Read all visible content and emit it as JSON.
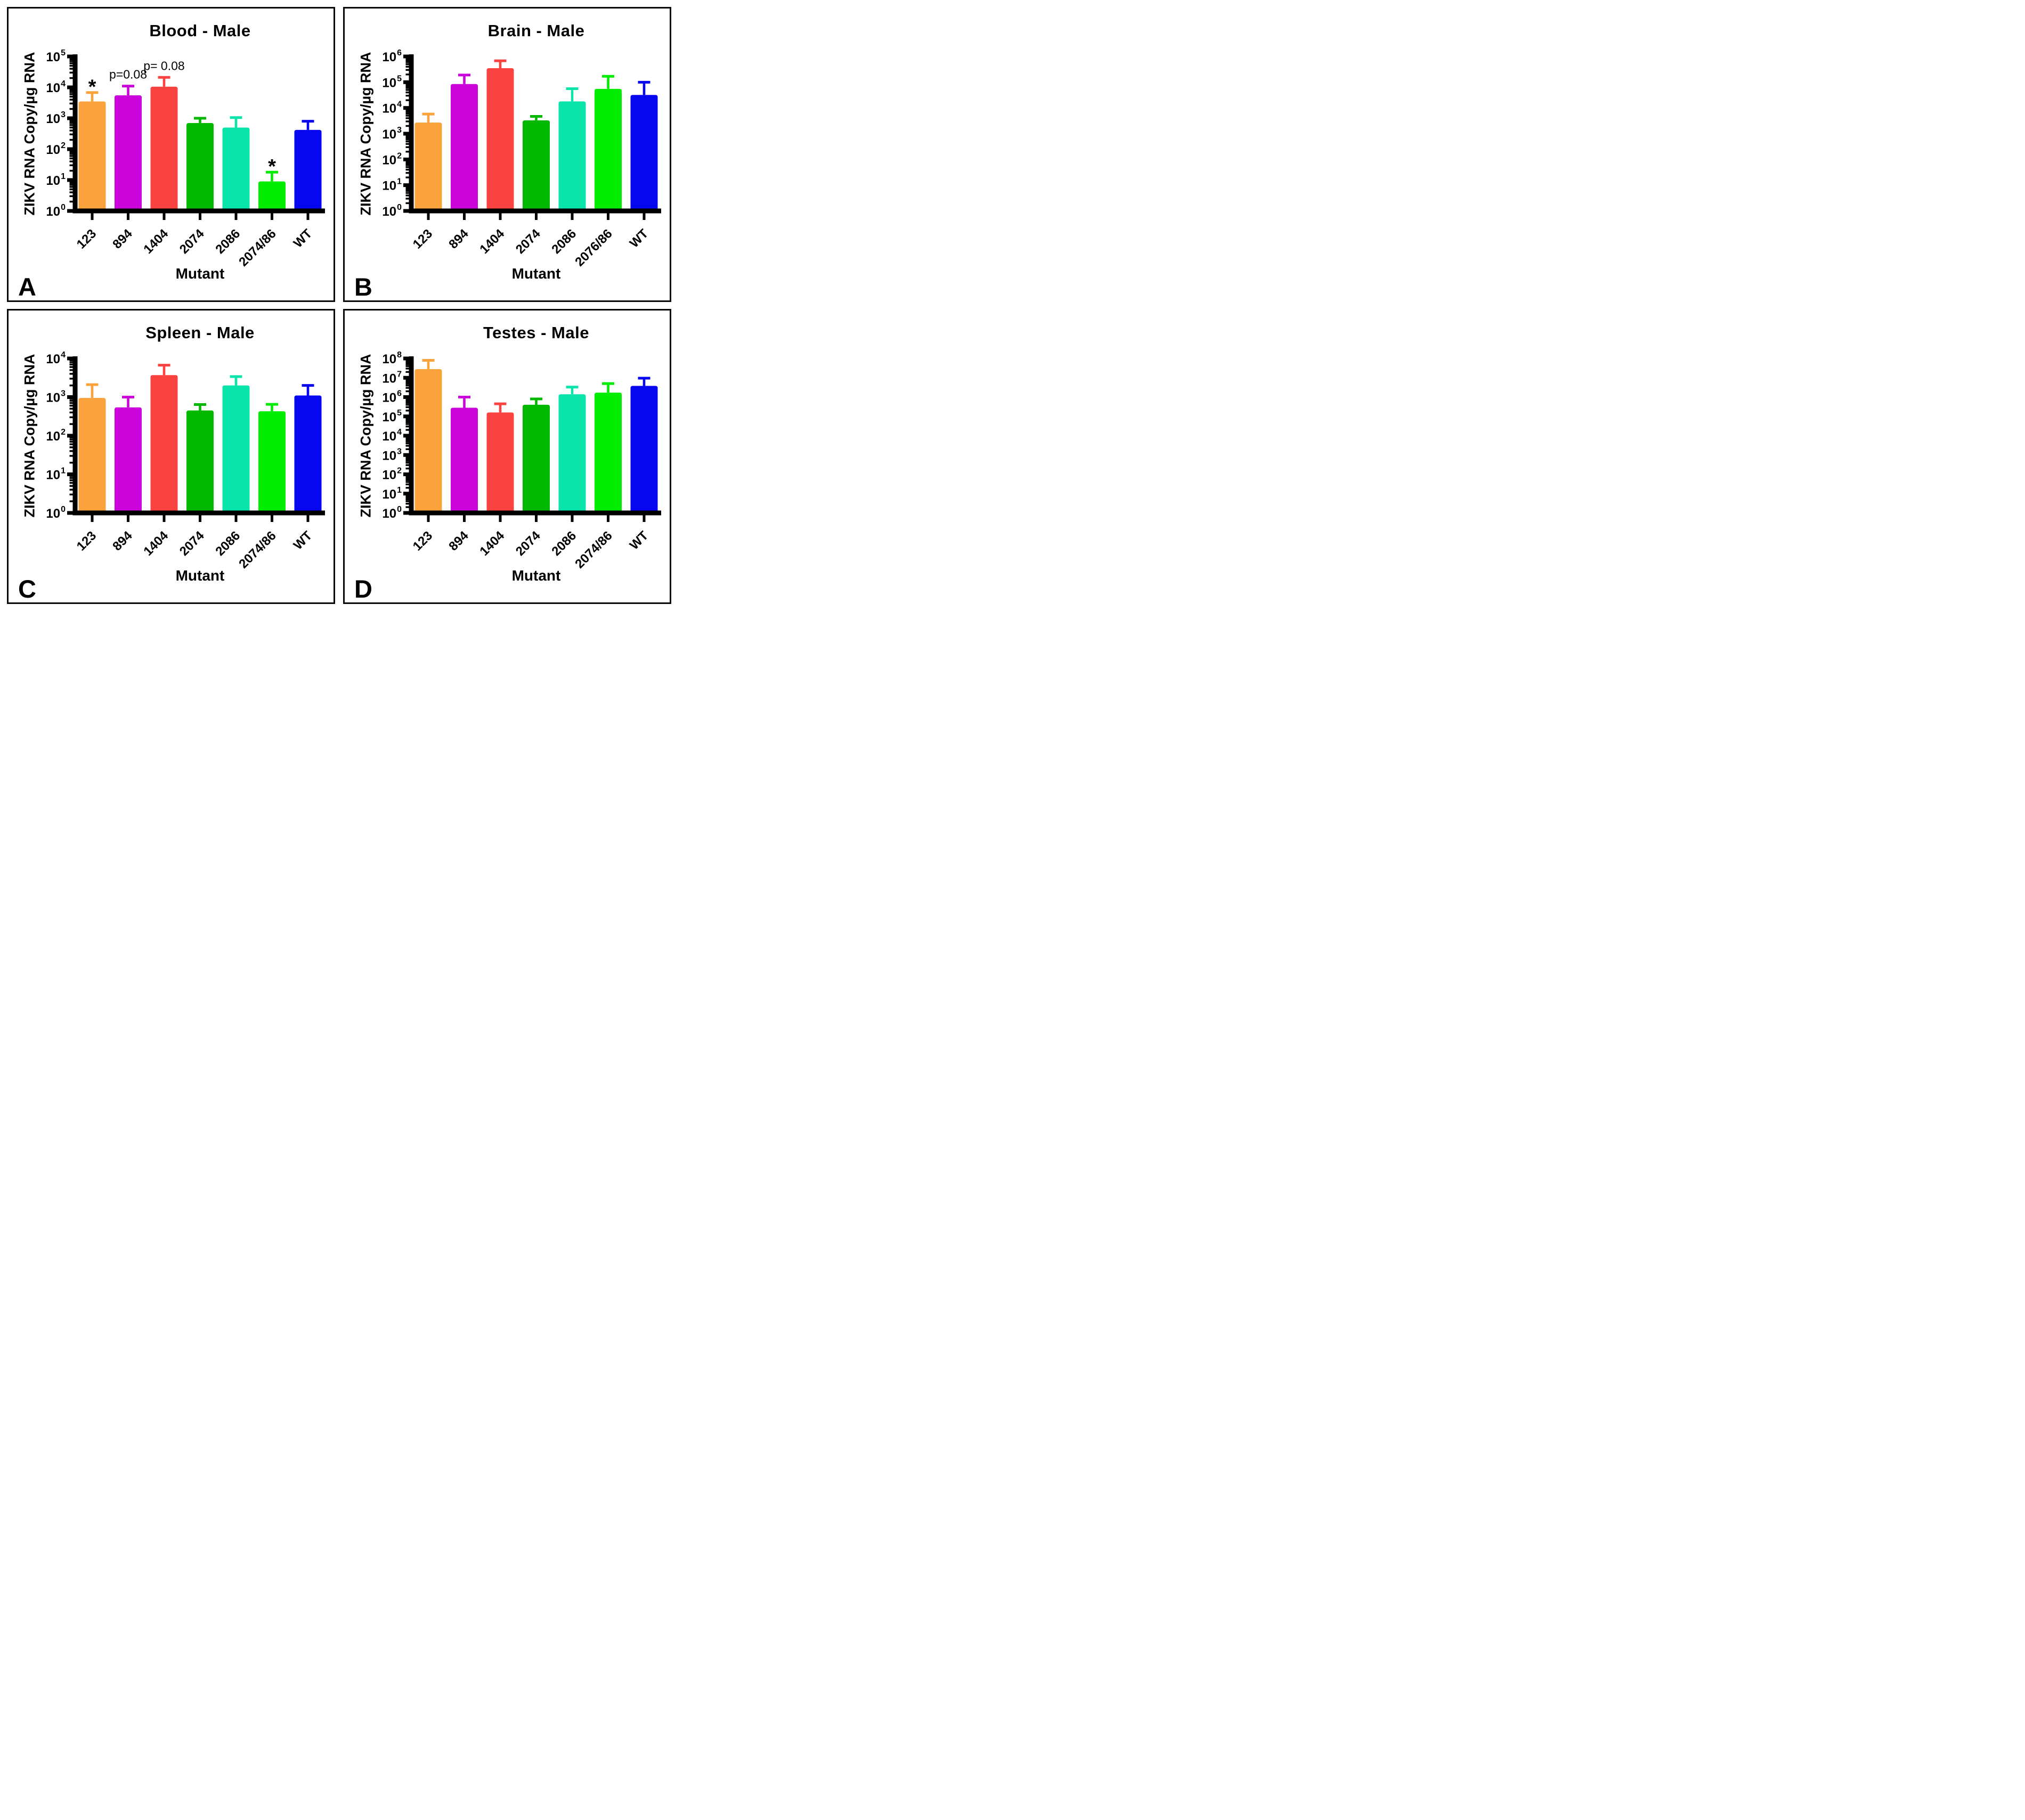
{
  "figure": {
    "background_color": "#ffffff",
    "panel_border_color": "#0a0a0a",
    "axis_color": "#000000",
    "bar_colors": [
      "#FAA23C",
      "#CB04DC",
      "#FA4340",
      "#01B801",
      "#09E4AB",
      "#00ED00",
      "#0606F0"
    ],
    "scale": "log10"
  },
  "chart_data": [
    {
      "id": "A",
      "type": "bar",
      "title": "Blood - Male",
      "xlabel": "Mutant",
      "ylabel": "ZIKV RNA Copy/µg RNA",
      "categories": [
        "123",
        "894",
        "1404",
        "2074",
        "2086",
        "2074/86",
        "WT"
      ],
      "values": [
        3500,
        5500,
        10500,
        700,
        500,
        9,
        420
      ],
      "error_high": [
        6800,
        11000,
        21000,
        1000,
        1050,
        18,
        800
      ],
      "ylim_log": [
        0,
        5
      ],
      "yticks": [
        "10^0",
        "10^1",
        "10^2",
        "10^3",
        "10^4",
        "10^5"
      ],
      "annotations": [
        {
          "bar": 0,
          "text": "*",
          "style": "star"
        },
        {
          "bar": 1,
          "text": "p=0.08",
          "style": "p"
        },
        {
          "bar": 2,
          "text": "p= 0.08",
          "style": "p"
        },
        {
          "bar": 5,
          "text": "*",
          "style": "star"
        }
      ]
    },
    {
      "id": "B",
      "type": "bar",
      "title": "Brain - Male",
      "xlabel": "Mutant",
      "ylabel": "ZIKV RNA Copy/µg RNA",
      "categories": [
        "123",
        "894",
        "1404",
        "2074",
        "2086",
        "2076/86",
        "WT"
      ],
      "values": [
        2700,
        85000,
        350000,
        3300,
        18000,
        55000,
        32000
      ],
      "error_high": [
        5800,
        190000,
        680000,
        4700,
        56000,
        170000,
        100000
      ],
      "ylim_log": [
        0,
        6
      ],
      "yticks": [
        "10^0",
        "10^1",
        "10^2",
        "10^3",
        "10^4",
        "10^5",
        "10^6"
      ],
      "annotations": []
    },
    {
      "id": "C",
      "type": "bar",
      "title": "Spleen - Male",
      "xlabel": "Mutant",
      "ylabel": "ZIKV RNA Copy/µg RNA",
      "categories": [
        "123",
        "894",
        "1404",
        "2074",
        "2086",
        "2074/86",
        "WT"
      ],
      "values": [
        950,
        540,
        3700,
        450,
        2000,
        430,
        1100
      ],
      "error_high": [
        2100,
        1000,
        6700,
        640,
        3400,
        650,
        2000
      ],
      "ylim_log": [
        0,
        4
      ],
      "yticks": [
        "10^0",
        "10^1",
        "10^2",
        "10^3",
        "10^4"
      ],
      "annotations": []
    },
    {
      "id": "D",
      "type": "bar",
      "title": "Testes - Male",
      "xlabel": "Mutant",
      "ylabel": "ZIKV RNA Copy/µg RNA",
      "categories": [
        "123",
        "894",
        "1404",
        "2074",
        "2086",
        "2074/86",
        "WT"
      ],
      "values": [
        28000000,
        280000,
        160000,
        400000,
        1400000,
        1700000,
        3800000
      ],
      "error_high": [
        80000000,
        1000000,
        450000,
        800000,
        3300000,
        5000000,
        9500000
      ],
      "ylim_log": [
        0,
        8
      ],
      "yticks": [
        "10^0",
        "10^1",
        "10^2",
        "10^3",
        "10^4",
        "10^5",
        "10^6",
        "10^7",
        "10^8"
      ],
      "annotations": []
    }
  ]
}
